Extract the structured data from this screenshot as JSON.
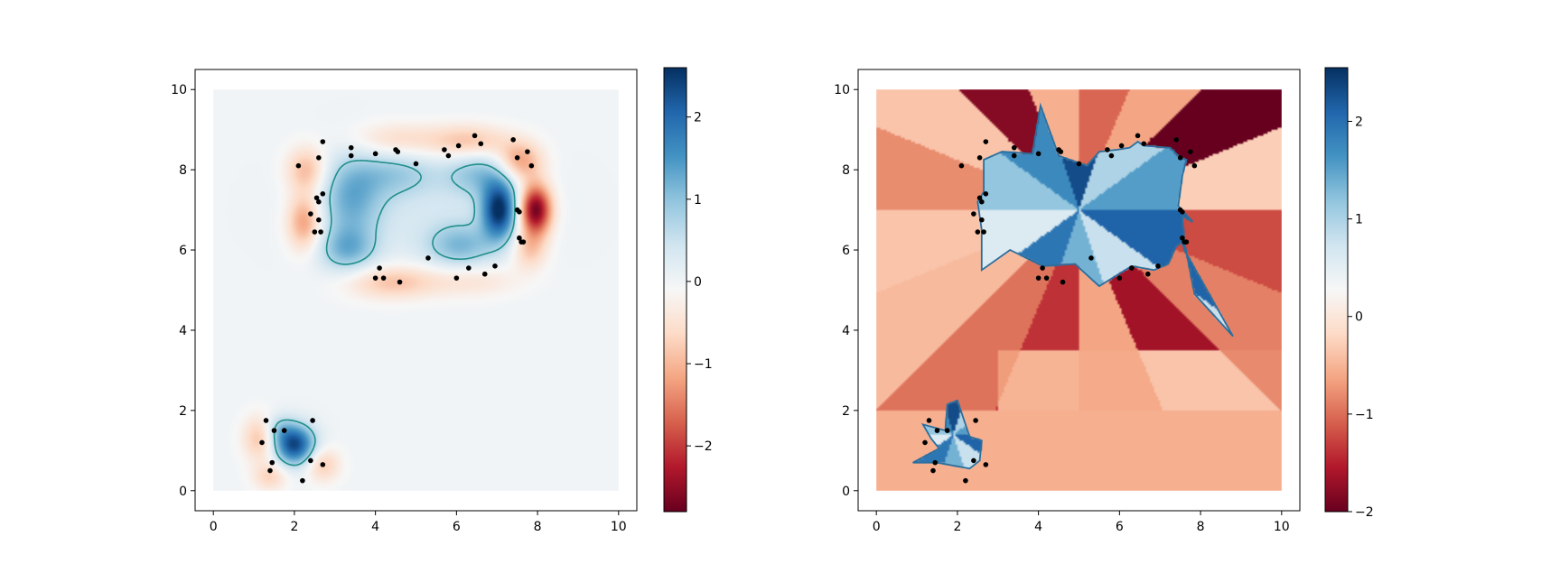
{
  "chart_data": [
    {
      "type": "heatmap",
      "title": "",
      "xlabel": "",
      "ylabel": "",
      "xlim": [
        -0.45,
        10.45
      ],
      "ylim": [
        -0.5,
        10.5
      ],
      "field_extent": [
        0,
        10,
        0,
        10
      ],
      "colormap": "RdBu",
      "xticks": [
        0,
        2,
        4,
        6,
        8,
        10
      ],
      "yticks": [
        0,
        2,
        4,
        6,
        8,
        10
      ],
      "colorbar": {
        "min": -2.8,
        "max": 2.6,
        "ticks": [
          2,
          1,
          0,
          -1,
          -2
        ]
      },
      "contour_color": "#1f8f8a",
      "contour_level": 0.7,
      "grid": false,
      "points": [
        [
          2.1,
          8.1
        ],
        [
          2.6,
          8.3
        ],
        [
          2.7,
          8.7
        ],
        [
          3.4,
          8.55
        ],
        [
          3.4,
          8.35
        ],
        [
          4.0,
          8.4
        ],
        [
          4.5,
          8.5
        ],
        [
          4.55,
          8.45
        ],
        [
          5.0,
          8.15
        ],
        [
          5.7,
          8.5
        ],
        [
          5.8,
          8.35
        ],
        [
          6.05,
          8.6
        ],
        [
          6.45,
          8.85
        ],
        [
          6.6,
          8.65
        ],
        [
          7.4,
          8.75
        ],
        [
          7.5,
          8.3
        ],
        [
          7.75,
          8.45
        ],
        [
          7.85,
          8.1
        ],
        [
          2.4,
          6.9
        ],
        [
          2.55,
          7.3
        ],
        [
          2.6,
          7.2
        ],
        [
          2.7,
          7.4
        ],
        [
          2.6,
          6.75
        ],
        [
          2.5,
          6.45
        ],
        [
          2.65,
          6.45
        ],
        [
          7.5,
          7.0
        ],
        [
          7.55,
          6.95
        ],
        [
          7.55,
          6.3
        ],
        [
          7.6,
          6.2
        ],
        [
          7.65,
          6.2
        ],
        [
          4.1,
          5.55
        ],
        [
          4.0,
          5.3
        ],
        [
          4.2,
          5.3
        ],
        [
          4.6,
          5.2
        ],
        [
          5.3,
          5.8
        ],
        [
          6.0,
          5.3
        ],
        [
          6.3,
          5.55
        ],
        [
          6.7,
          5.4
        ],
        [
          6.95,
          5.6
        ],
        [
          1.3,
          1.75
        ],
        [
          1.5,
          1.5
        ],
        [
          1.75,
          1.5
        ],
        [
          2.45,
          1.75
        ],
        [
          1.2,
          1.2
        ],
        [
          1.45,
          0.7
        ],
        [
          1.4,
          0.5
        ],
        [
          2.4,
          0.75
        ],
        [
          2.7,
          0.65
        ],
        [
          2.2,
          0.25
        ]
      ],
      "blobs": [
        {
          "x": 2.0,
          "y": 1.15,
          "sx": 0.35,
          "sy": 0.35,
          "a": 2.4
        },
        {
          "x": 1.6,
          "y": 1.55,
          "sx": 0.25,
          "sy": 0.25,
          "a": 0.6
        },
        {
          "x": 7.05,
          "y": 7.0,
          "sx": 0.3,
          "sy": 0.5,
          "a": 2.5
        },
        {
          "x": 3.4,
          "y": 7.3,
          "sx": 0.55,
          "sy": 0.75,
          "a": 1.1
        },
        {
          "x": 3.3,
          "y": 6.0,
          "sx": 0.5,
          "sy": 0.4,
          "a": 1.0
        },
        {
          "x": 6.1,
          "y": 6.1,
          "sx": 0.6,
          "sy": 0.4,
          "a": 1.0
        },
        {
          "x": 6.6,
          "y": 7.9,
          "sx": 0.6,
          "sy": 0.4,
          "a": 0.9
        },
        {
          "x": 4.5,
          "y": 7.9,
          "sx": 0.7,
          "sy": 0.4,
          "a": 0.7
        },
        {
          "x": 5.2,
          "y": 7.0,
          "sx": 1.7,
          "sy": 0.9,
          "a": 0.3
        },
        {
          "x": 7.95,
          "y": 7.0,
          "sx": 0.28,
          "sy": 0.45,
          "a": -2.8
        },
        {
          "x": 2.25,
          "y": 6.7,
          "sx": 0.3,
          "sy": 0.5,
          "a": -1.3
        },
        {
          "x": 2.3,
          "y": 8.0,
          "sx": 0.35,
          "sy": 0.4,
          "a": -1.0
        },
        {
          "x": 7.55,
          "y": 8.2,
          "sx": 0.4,
          "sy": 0.35,
          "a": -1.3
        },
        {
          "x": 6.3,
          "y": 8.7,
          "sx": 0.7,
          "sy": 0.3,
          "a": -0.9
        },
        {
          "x": 4.5,
          "y": 8.75,
          "sx": 0.8,
          "sy": 0.3,
          "a": -0.6
        },
        {
          "x": 4.4,
          "y": 5.2,
          "sx": 0.8,
          "sy": 0.3,
          "a": -0.9
        },
        {
          "x": 6.4,
          "y": 5.25,
          "sx": 0.8,
          "sy": 0.3,
          "a": -0.5
        },
        {
          "x": 7.8,
          "y": 6.0,
          "sx": 0.3,
          "sy": 0.35,
          "a": -0.8
        },
        {
          "x": 1.15,
          "y": 1.3,
          "sx": 0.3,
          "sy": 0.4,
          "a": -0.9
        },
        {
          "x": 2.7,
          "y": 0.65,
          "sx": 0.3,
          "sy": 0.3,
          "a": -0.8
        },
        {
          "x": 1.4,
          "y": 0.35,
          "sx": 0.3,
          "sy": 0.25,
          "a": -0.7
        }
      ]
    },
    {
      "type": "heatmap",
      "title": "",
      "xlabel": "",
      "ylabel": "",
      "xlim": [
        -0.45,
        10.45
      ],
      "ylim": [
        -0.5,
        10.5
      ],
      "field_extent": [
        0,
        10,
        0,
        10
      ],
      "colormap": "RdBu",
      "xticks": [
        0,
        2,
        4,
        6,
        8,
        10
      ],
      "yticks": [
        0,
        2,
        4,
        6,
        8,
        10
      ],
      "colorbar": {
        "min": -2.0,
        "max": 2.55,
        "ticks": [
          2,
          1,
          0,
          -1,
          -2
        ]
      },
      "contour_color": "#2a6f9e",
      "grid": false,
      "regions": [
        [
          [
            5.2,
            8.1
          ],
          [
            4.5,
            8.35
          ],
          [
            4.05,
            9.6
          ],
          [
            3.85,
            8.4
          ],
          [
            3.1,
            8.45
          ],
          [
            2.65,
            8.25
          ],
          [
            2.65,
            7.45
          ],
          [
            2.5,
            7.2
          ],
          [
            2.6,
            6.5
          ],
          [
            2.6,
            5.5
          ],
          [
            3.3,
            6.0
          ],
          [
            4.1,
            5.6
          ],
          [
            4.9,
            5.65
          ],
          [
            5.5,
            5.1
          ],
          [
            6.3,
            5.6
          ],
          [
            6.85,
            5.5
          ],
          [
            7.2,
            5.65
          ],
          [
            7.4,
            6.1
          ],
          [
            7.55,
            6.2
          ],
          [
            7.6,
            6.0
          ],
          [
            8.8,
            3.85
          ],
          [
            7.85,
            4.9
          ],
          [
            7.6,
            6.2
          ],
          [
            7.55,
            6.85
          ],
          [
            7.8,
            6.7
          ],
          [
            7.45,
            7.1
          ],
          [
            7.55,
            7.85
          ],
          [
            7.65,
            8.25
          ],
          [
            7.5,
            8.3
          ],
          [
            7.25,
            8.55
          ],
          [
            6.6,
            8.6
          ],
          [
            6.45,
            8.7
          ],
          [
            6.25,
            8.55
          ],
          [
            5.95,
            8.5
          ],
          [
            5.5,
            8.45
          ]
        ],
        [
          [
            2.0,
            2.25
          ],
          [
            2.3,
            1.35
          ],
          [
            2.6,
            1.25
          ],
          [
            2.55,
            0.75
          ],
          [
            2.3,
            0.55
          ],
          [
            1.5,
            0.7
          ],
          [
            0.9,
            0.7
          ],
          [
            1.55,
            1.05
          ],
          [
            1.35,
            1.3
          ],
          [
            1.15,
            1.65
          ],
          [
            1.7,
            1.5
          ],
          [
            1.75,
            2.15
          ]
        ]
      ],
      "fan_rays": [
        0.2,
        -0.3,
        0.9,
        -1.4,
        0.5,
        1.7,
        -0.8,
        1.2,
        0.1,
        2.3,
        -0.5,
        1.0,
        0.4,
        1.9,
        -0.2,
        0.7
      ],
      "points": [
        [
          2.1,
          8.1
        ],
        [
          2.55,
          8.3
        ],
        [
          2.7,
          8.7
        ],
        [
          3.4,
          8.55
        ],
        [
          3.4,
          8.35
        ],
        [
          4.0,
          8.4
        ],
        [
          4.5,
          8.5
        ],
        [
          4.55,
          8.45
        ],
        [
          5.0,
          8.15
        ],
        [
          5.7,
          8.5
        ],
        [
          5.8,
          8.35
        ],
        [
          6.05,
          8.6
        ],
        [
          6.45,
          8.85
        ],
        [
          6.6,
          8.65
        ],
        [
          7.4,
          8.75
        ],
        [
          7.5,
          8.3
        ],
        [
          7.75,
          8.45
        ],
        [
          7.85,
          8.1
        ],
        [
          2.4,
          6.9
        ],
        [
          2.55,
          7.3
        ],
        [
          2.6,
          7.2
        ],
        [
          2.7,
          7.4
        ],
        [
          2.6,
          6.75
        ],
        [
          2.5,
          6.45
        ],
        [
          2.65,
          6.45
        ],
        [
          7.5,
          7.0
        ],
        [
          7.55,
          6.95
        ],
        [
          7.55,
          6.3
        ],
        [
          7.6,
          6.2
        ],
        [
          7.65,
          6.2
        ],
        [
          4.1,
          5.55
        ],
        [
          4.0,
          5.3
        ],
        [
          4.2,
          5.3
        ],
        [
          4.6,
          5.2
        ],
        [
          5.3,
          5.8
        ],
        [
          6.0,
          5.3
        ],
        [
          6.3,
          5.55
        ],
        [
          6.7,
          5.4
        ],
        [
          6.95,
          5.6
        ],
        [
          1.3,
          1.75
        ],
        [
          1.5,
          1.5
        ],
        [
          1.75,
          1.5
        ],
        [
          2.45,
          1.75
        ],
        [
          1.2,
          1.2
        ],
        [
          1.45,
          0.7
        ],
        [
          1.4,
          0.5
        ],
        [
          2.4,
          0.75
        ],
        [
          2.7,
          0.65
        ],
        [
          2.2,
          0.25
        ]
      ]
    }
  ]
}
